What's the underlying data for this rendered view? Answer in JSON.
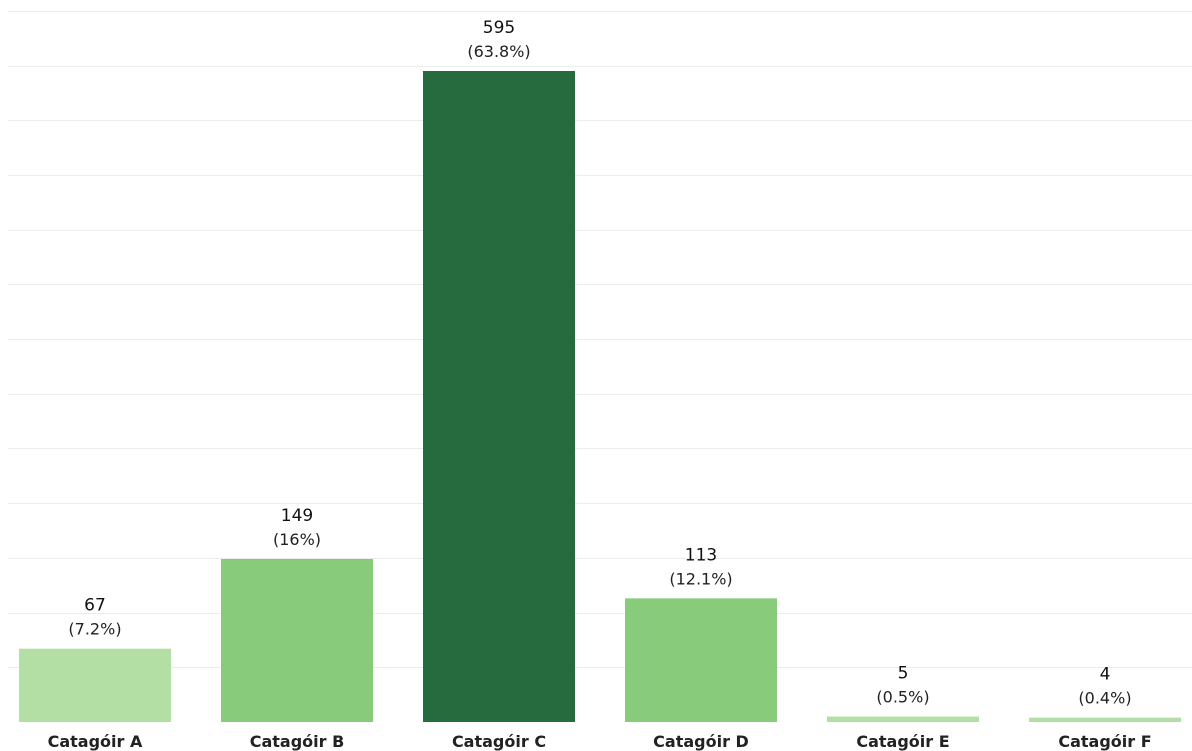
{
  "chart_data": {
    "type": "bar",
    "categories": [
      "Catagóir A",
      "Catagóir B",
      "Catagóir C",
      "Catagóir D",
      "Catagóir E",
      "Catagóir F"
    ],
    "values": [
      67,
      149,
      595,
      113,
      5,
      4
    ],
    "percent_labels": [
      "(7.2%)",
      "(16%)",
      "(63.8%)",
      "(12.1%)",
      "(0.5%)",
      "(0.4%)"
    ],
    "colors": [
      "#b3dfa5",
      "#88cb7a",
      "#256b3e",
      "#88cb7a",
      "#b3dfa5",
      "#b3dfa5"
    ],
    "ylim": [
      0,
      650
    ],
    "grid": true,
    "gridline_step": 50,
    "legend": "none"
  }
}
